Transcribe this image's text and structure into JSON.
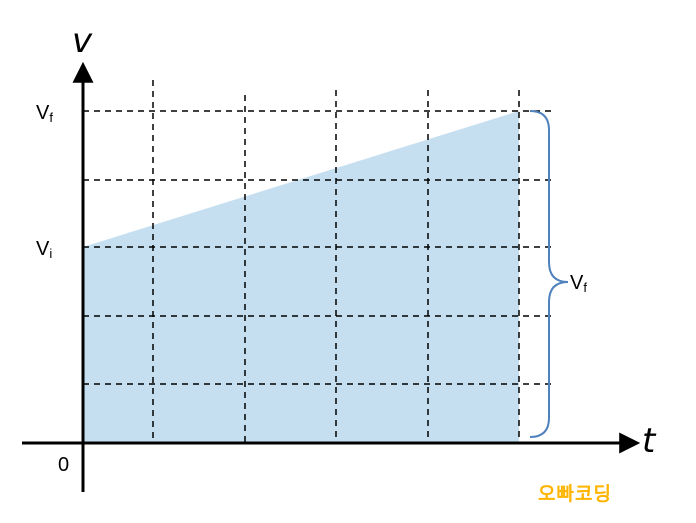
{
  "axes": {
    "y_label": "v",
    "x_label": "t",
    "origin_label": "0"
  },
  "ticks": {
    "vf": {
      "main": "V",
      "sub": "f"
    },
    "vi": {
      "main": "V",
      "sub": "i"
    }
  },
  "brace_label": {
    "main": "V",
    "sub": "f"
  },
  "watermark": "오빠코딩",
  "colors": {
    "fill": "#c5dff0",
    "brace": "#4f81bd",
    "watermark": "#ffb400"
  }
}
